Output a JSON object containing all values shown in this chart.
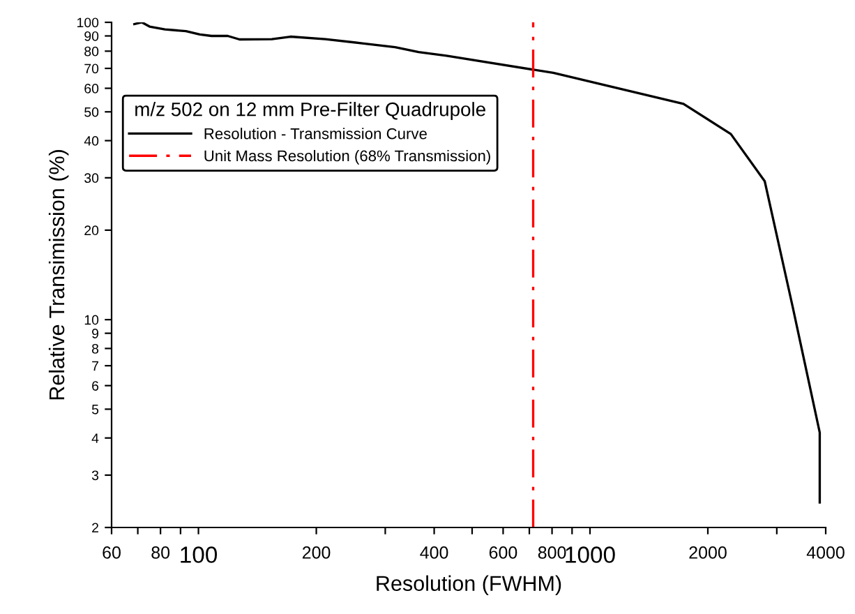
{
  "chart_data": {
    "type": "line",
    "xlabel": "Resolution (FWHM)",
    "ylabel": "Relative Transimission (%)",
    "legend_title": "m/z 502 on 12 mm Pre-Filter Quadrupole",
    "log": "xy",
    "grid": false,
    "legend": "top left",
    "marker": "none",
    "xlim": [
      60,
      4000
    ],
    "ylim": [
      2,
      100
    ],
    "xticks": [
      60,
      {
        "value": 70,
        "label": null
      },
      80,
      {
        "value": 90,
        "label": null
      },
      100,
      200,
      {
        "value": 300,
        "label": null
      },
      400,
      {
        "value": 500,
        "label": null
      },
      600,
      {
        "value": 700,
        "label": null
      },
      800,
      {
        "value": 900,
        "label": null
      },
      1000,
      2000,
      {
        "value": 3000,
        "label": null
      },
      4000
    ],
    "yticks": [
      2,
      3,
      4,
      5,
      6,
      7,
      8,
      9,
      10,
      20,
      30,
      40,
      50,
      60,
      70,
      80,
      90,
      100
    ],
    "series": [
      {
        "name": "Resolution - Transmission Curve",
        "color": "#000000",
        "line_style": "solid",
        "x": [
          68.6,
          71.7,
          75,
          82.1,
          92.9,
          100.8,
          108,
          118.8,
          127.3,
          154,
          171.8,
          211,
          262,
          318,
          365,
          430,
          806,
          1733,
          2290,
          2795,
          3296,
          3862,
          3862
        ],
        "values": [
          98.6,
          100,
          96.8,
          94.7,
          93.4,
          91.0,
          90.0,
          90.0,
          87.6,
          87.8,
          89.5,
          87.8,
          85.0,
          82.5,
          79.4,
          77.2,
          67.6,
          53.2,
          42.1,
          29.2,
          11.0,
          4.17,
          2.43
        ]
      }
    ],
    "ref_lines": [
      {
        "axis": "x",
        "value": 716,
        "label": "Unit Mass Resolution (68% Transmission)",
        "color": "#ff0000",
        "line_style": "dashed"
      }
    ]
  }
}
